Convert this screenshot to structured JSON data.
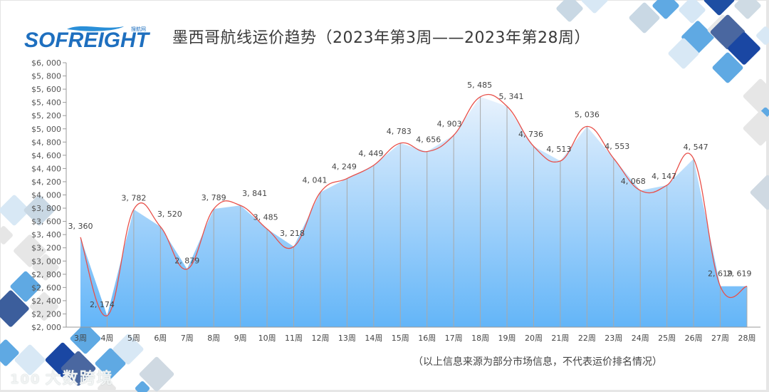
{
  "header": {
    "logo_text": "SOFREIGHT",
    "logo_subtext": "搜航网",
    "title": "墨西哥航线运价趋势（2023年第3周——2023年第28周）"
  },
  "footer": {
    "note": "（以上信息来源为部分市场信息，不代表运价排名情况）",
    "watermark": "大数跨境",
    "watermark_icon": "100"
  },
  "colors": {
    "line": "#e8504a",
    "fill_top": "#e4f0fc",
    "fill_bottom": "#63b5f8",
    "axis": "#999999",
    "drop_line": "#a9a9a9"
  },
  "chart_data": {
    "type": "area",
    "title": "墨西哥航线运价趋势（2023年第3周——2023年第28周）",
    "xlabel": "",
    "ylabel": "",
    "ylim": [
      2000,
      6000
    ],
    "y_ticks": [
      "$2, 000",
      "$2, 200",
      "$2, 400",
      "$2, 600",
      "$2, 800",
      "$3, 000",
      "$3, 200",
      "$3, 400",
      "$3, 600",
      "$3, 800",
      "$4, 000",
      "$4, 200",
      "$4, 400",
      "$4, 600",
      "$4, 800",
      "$5, 000",
      "$5, 200",
      "$5, 400",
      "$5, 600",
      "$5, 800",
      "$6, 000"
    ],
    "categories": [
      "3周",
      "4周",
      "5周",
      "6周",
      "7周",
      "8周",
      "9周",
      "10周",
      "11周",
      "12周",
      "13周",
      "14周",
      "15周",
      "16周",
      "17周",
      "18周",
      "19周",
      "20周",
      "21周",
      "22周",
      "23周",
      "24周",
      "25周",
      "26周",
      "27周",
      "28周"
    ],
    "values": [
      3360,
      2174,
      3782,
      3520,
      2879,
      3789,
      3841,
      3485,
      3218,
      4041,
      4249,
      4449,
      4783,
      4656,
      4903,
      5485,
      5341,
      4736,
      4513,
      5036,
      4553,
      4068,
      4147,
      4547,
      2619,
      2619
    ],
    "value_labels": [
      "3, 360",
      "2, 174",
      "3, 782",
      "3, 520",
      "2, 879",
      "3, 789",
      "3, 841",
      "3, 485",
      "3, 218",
      "4, 041",
      "4, 249",
      "4, 449",
      "4, 783",
      "4, 656",
      "4, 903",
      "5, 485",
      "5, 341",
      "4, 736",
      "4, 513",
      "5, 036",
      "4, 553",
      "4, 068",
      "4, 147",
      "4, 547",
      "2, 619",
      "2, 619"
    ],
    "grid": false,
    "legend": "none",
    "smooth": true
  }
}
